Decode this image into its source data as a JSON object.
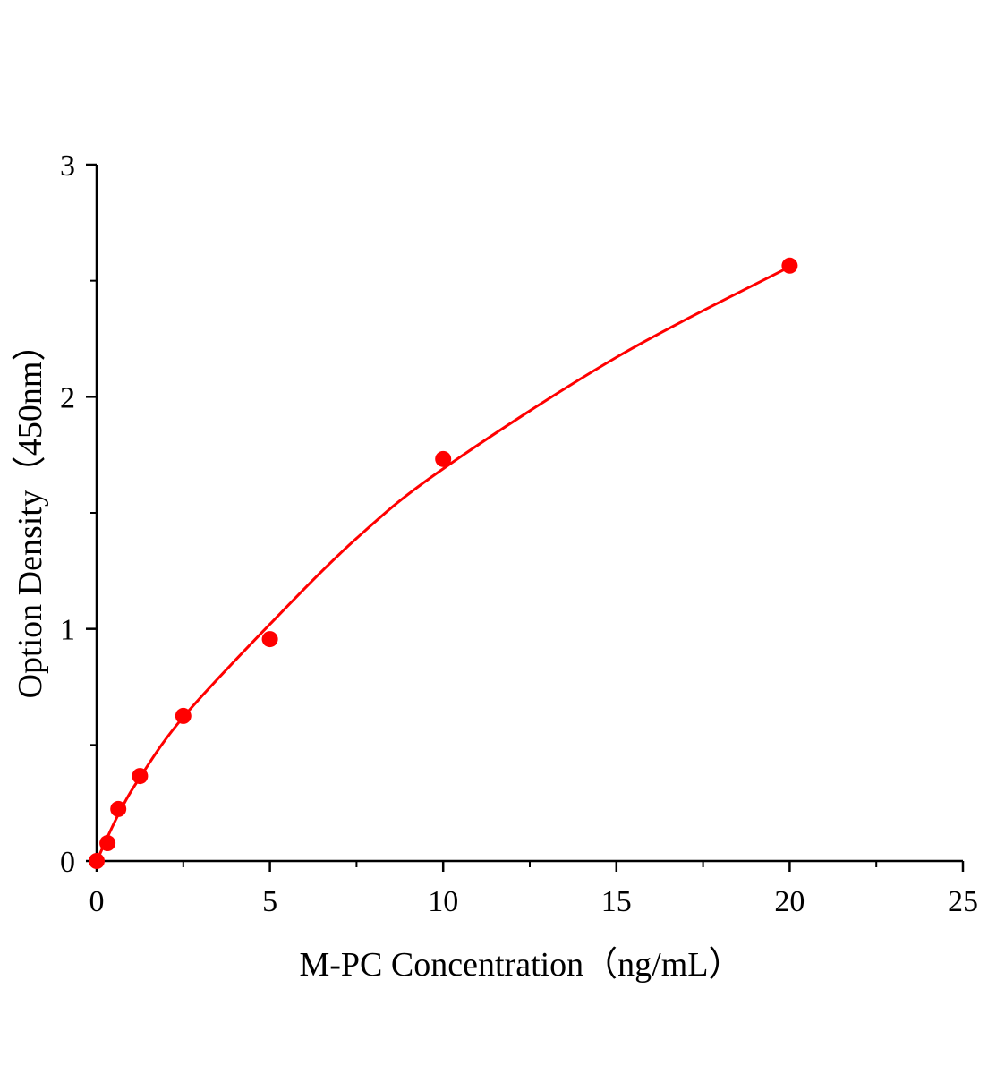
{
  "chart_data": {
    "type": "scatter",
    "title": "",
    "xlabel": "M-PC Concentration（ng/mL）",
    "ylabel": "Option Density（450nm）",
    "xlim": [
      0,
      25
    ],
    "ylim": [
      0,
      3
    ],
    "xticks": [
      0,
      5,
      10,
      15,
      20,
      25
    ],
    "yticks": [
      0,
      1,
      2,
      3
    ],
    "xtick_labels": [
      "0",
      "5",
      "10",
      "15",
      "20",
      "25"
    ],
    "ytick_labels": [
      "0",
      "1",
      "2",
      "3"
    ],
    "grid": false,
    "color": "#ff0000",
    "points": {
      "x": [
        0,
        0.3125,
        0.625,
        1.25,
        2.5,
        5,
        10,
        20
      ],
      "y": [
        0.0,
        0.077,
        0.224,
        0.366,
        0.625,
        0.956,
        1.732,
        2.565
      ]
    },
    "fit_curve": {
      "x": [
        0,
        0.625,
        1.25,
        2.5,
        5,
        7.5,
        10,
        15,
        20
      ],
      "y": [
        0,
        0.2,
        0.36,
        0.62,
        1.02,
        1.39,
        1.69,
        2.17,
        2.56
      ]
    }
  }
}
